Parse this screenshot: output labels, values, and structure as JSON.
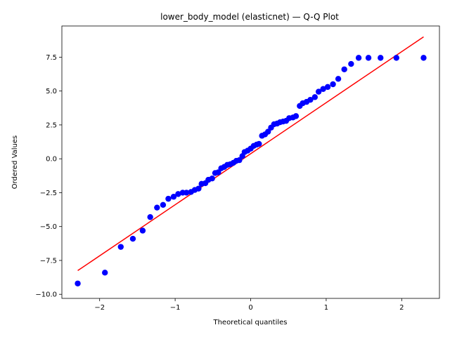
{
  "chart_data": {
    "type": "scatter",
    "title": "lower_body_model (elasticnet) — Q-Q Plot",
    "xlabel": "Theoretical quantiles",
    "ylabel": "Ordered Values",
    "xlim": [
      -2.5,
      2.5
    ],
    "ylim": [
      -10.3,
      9.8
    ],
    "x_ticks": [
      -2,
      -1,
      0,
      1,
      2
    ],
    "y_ticks": [
      -10.0,
      -7.5,
      -5.0,
      -2.5,
      0.0,
      2.5,
      5.0,
      7.5
    ],
    "grid": false,
    "legend": "none",
    "colors": {
      "points": "#0000ff",
      "fit_line": "#ff0000"
    },
    "fit_line": {
      "x": [
        -2.29,
        2.29
      ],
      "y": [
        -8.25,
        9.0
      ]
    },
    "points": {
      "x": [
        -2.29,
        -1.93,
        -1.72,
        -1.56,
        -1.43,
        -1.33,
        -1.24,
        -1.16,
        -1.09,
        -1.02,
        -0.96,
        -0.9,
        -0.85,
        -0.79,
        -0.74,
        -0.69,
        -0.65,
        -0.6,
        -0.56,
        -0.51,
        -0.47,
        -0.43,
        -0.39,
        -0.35,
        -0.31,
        -0.27,
        -0.23,
        -0.19,
        -0.15,
        -0.11,
        -0.08,
        -0.04,
        0.0,
        0.04,
        0.08,
        0.11,
        0.15,
        0.19,
        0.23,
        0.27,
        0.31,
        0.35,
        0.39,
        0.43,
        0.47,
        0.51,
        0.56,
        0.6,
        0.65,
        0.69,
        0.74,
        0.79,
        0.85,
        0.9,
        0.96,
        1.02,
        1.09,
        1.16,
        1.24,
        1.33,
        1.43,
        1.56,
        1.72,
        1.93,
        2.29
      ],
      "y": [
        -9.2,
        -8.4,
        -6.5,
        -5.9,
        -5.3,
        -4.3,
        -3.6,
        -3.4,
        -2.95,
        -2.8,
        -2.6,
        -2.5,
        -2.5,
        -2.45,
        -2.3,
        -2.2,
        -1.85,
        -1.8,
        -1.55,
        -1.45,
        -1.05,
        -1.0,
        -0.7,
        -0.6,
        -0.45,
        -0.4,
        -0.3,
        -0.15,
        -0.1,
        0.2,
        0.5,
        0.6,
        0.75,
        0.95,
        1.05,
        1.1,
        1.7,
        1.8,
        2.0,
        2.3,
        2.55,
        2.6,
        2.7,
        2.75,
        2.8,
        3.0,
        3.05,
        3.15,
        3.9,
        4.1,
        4.2,
        4.35,
        4.55,
        4.95,
        5.15,
        5.3,
        5.5,
        5.9,
        6.6,
        7.0,
        7.45,
        7.45,
        7.45,
        7.45,
        7.45
      ]
    }
  }
}
